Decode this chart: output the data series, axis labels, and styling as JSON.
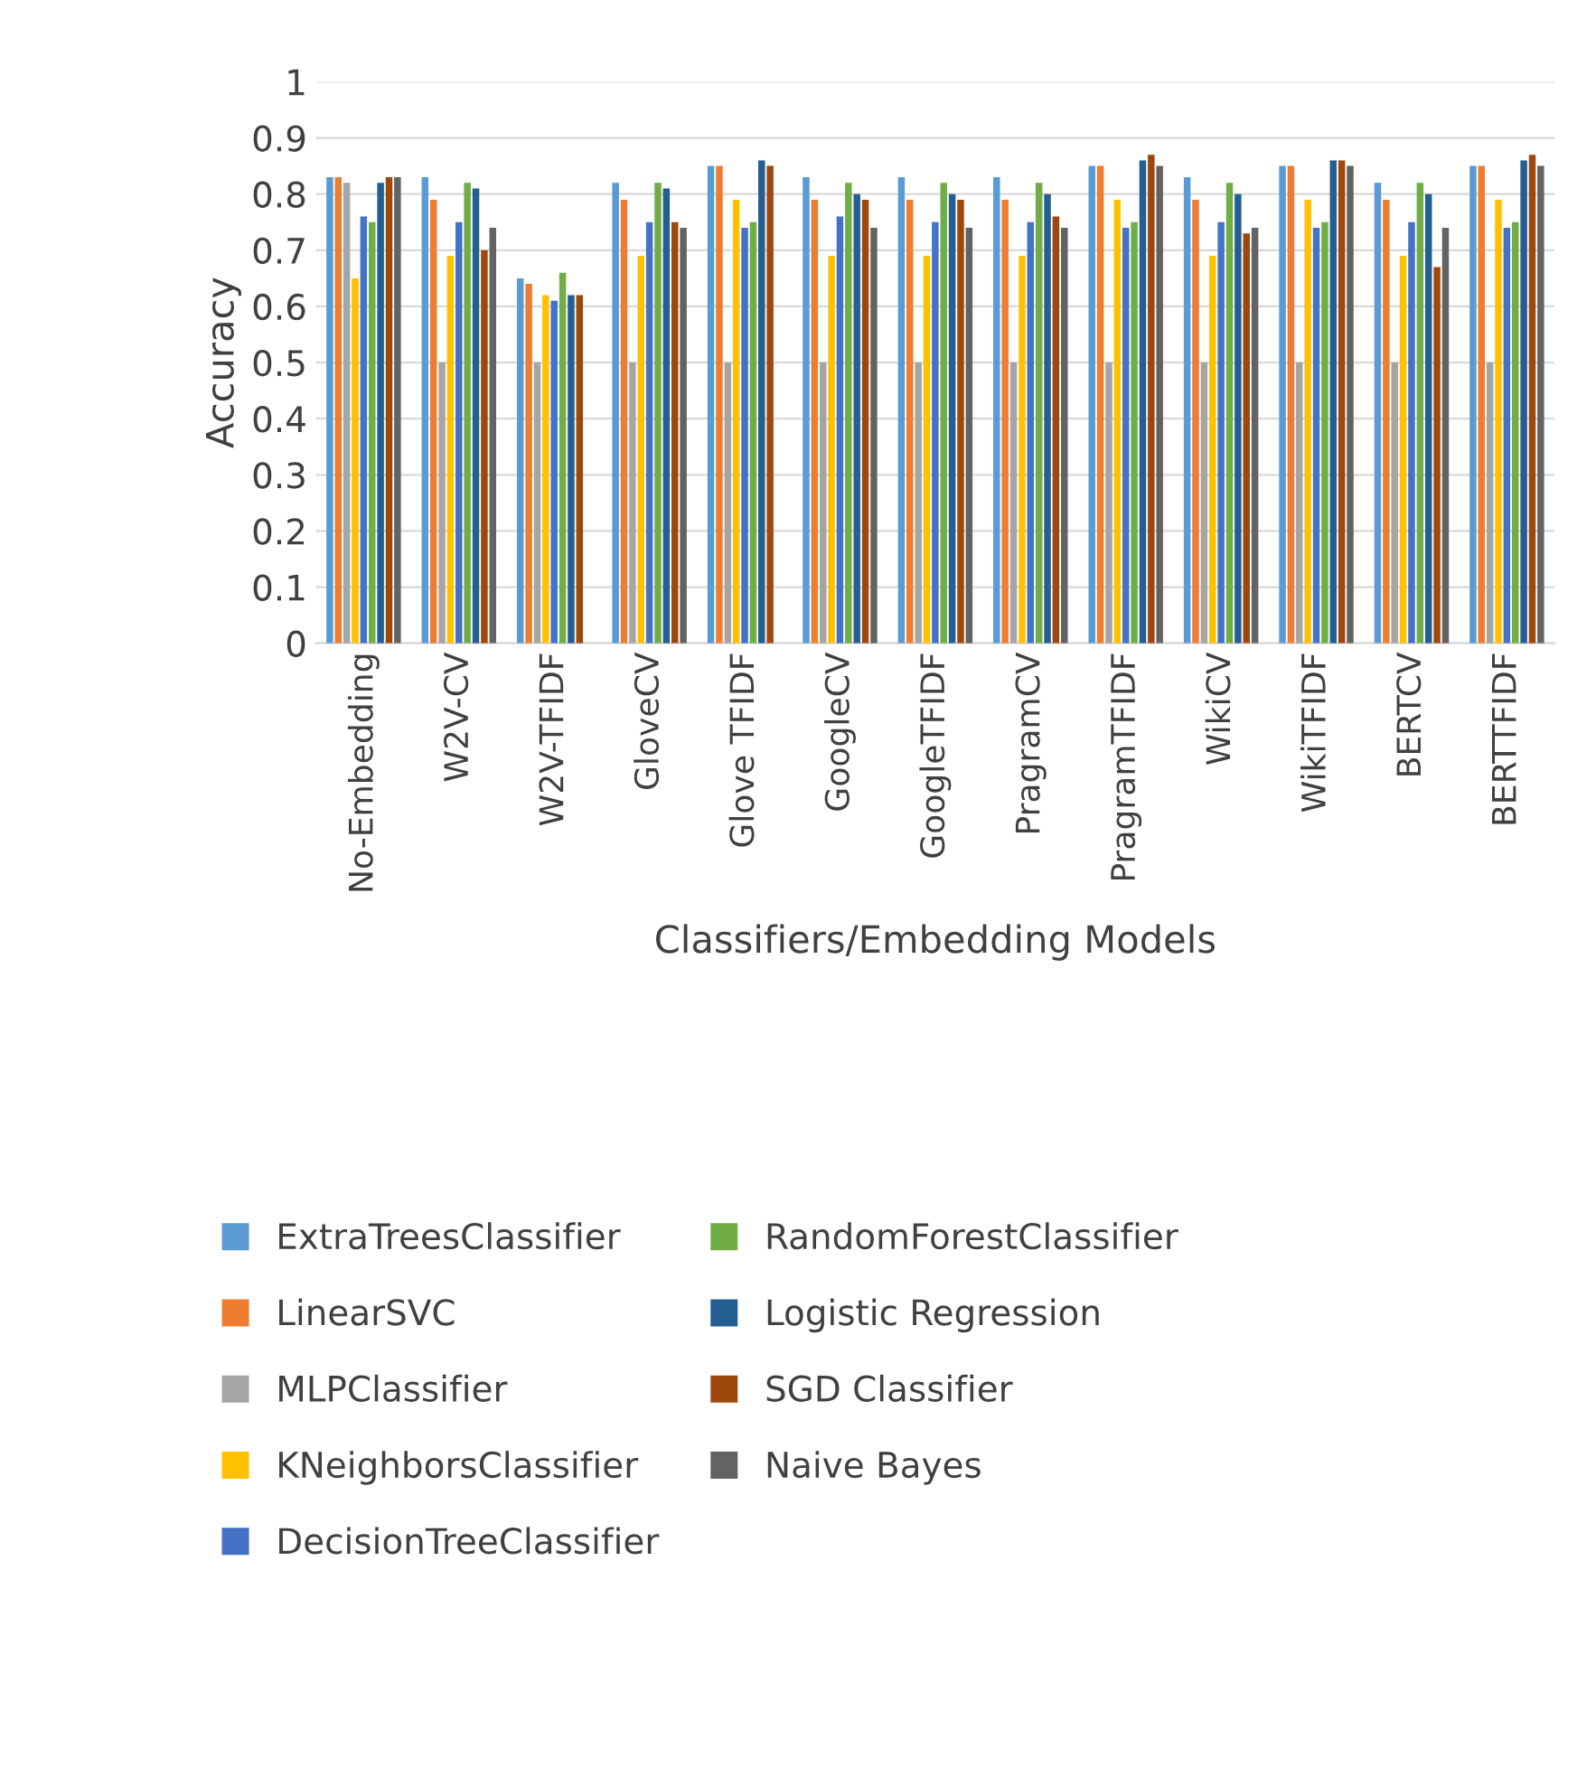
{
  "chart_data": {
    "type": "bar",
    "xlabel": "Classifiers/Embedding Models",
    "ylabel": "Accuracy",
    "categories": [
      "No-Embedding",
      "W2V-CV",
      "W2V-TFIDF",
      "GloveCV",
      "Glove TFIDF",
      "GoogleCV",
      "GoogleTFIDF",
      "PragramCV",
      "PragramTFIDF",
      "WikiCV",
      "WikiTFIDF",
      "BERTCV",
      "BERTTFIDF"
    ],
    "ylim": [
      0,
      1
    ],
    "yticks": [
      0,
      0.1,
      0.2,
      0.3,
      0.4,
      0.5,
      0.6,
      0.7,
      0.8,
      0.9,
      1
    ],
    "grid": "y",
    "legend": "bottom",
    "series": [
      {
        "name": "ExtraTreesClassifier",
        "color": "#5b9bd5",
        "values": [
          0.83,
          0.83,
          0.65,
          0.82,
          0.85,
          0.83,
          0.83,
          0.83,
          0.85,
          0.83,
          0.85,
          0.82,
          0.85
        ]
      },
      {
        "name": "LinearSVC",
        "color": "#ed7d31",
        "values": [
          0.83,
          0.79,
          0.64,
          0.79,
          0.85,
          0.79,
          0.79,
          0.79,
          0.85,
          0.79,
          0.85,
          0.79,
          0.85
        ]
      },
      {
        "name": "MLPClassifier",
        "color": "#a5a5a5",
        "values": [
          0.82,
          0.5,
          0.5,
          0.5,
          0.5,
          0.5,
          0.5,
          0.5,
          0.5,
          0.5,
          0.5,
          0.5,
          0.5
        ]
      },
      {
        "name": "KNeighborsClassifier",
        "color": "#ffc000",
        "values": [
          0.65,
          0.69,
          0.62,
          0.69,
          0.79,
          0.69,
          0.69,
          0.69,
          0.79,
          0.69,
          0.79,
          0.69,
          0.79
        ]
      },
      {
        "name": "DecisionTreeClassifier",
        "color": "#4472c4",
        "values": [
          0.76,
          0.75,
          0.61,
          0.75,
          0.74,
          0.76,
          0.75,
          0.75,
          0.74,
          0.75,
          0.74,
          0.75,
          0.74
        ]
      },
      {
        "name": "RandomForestClassifier",
        "color": "#70ad47",
        "values": [
          0.75,
          0.82,
          0.66,
          0.82,
          0.75,
          0.82,
          0.82,
          0.82,
          0.75,
          0.82,
          0.75,
          0.82,
          0.75
        ]
      },
      {
        "name": "Logistic Regression",
        "color": "#255e91",
        "values": [
          0.82,
          0.81,
          0.62,
          0.81,
          0.86,
          0.8,
          0.8,
          0.8,
          0.86,
          0.8,
          0.86,
          0.8,
          0.86
        ]
      },
      {
        "name": "SGD Classifier",
        "color": "#9e480e",
        "values": [
          0.83,
          0.7,
          0.62,
          0.75,
          0.85,
          0.79,
          0.79,
          0.76,
          0.87,
          0.73,
          0.86,
          0.67,
          0.87
        ]
      },
      {
        "name": "Naive Bayes",
        "color": "#636363",
        "values": [
          0.83,
          0.74,
          null,
          0.74,
          null,
          0.74,
          0.74,
          0.74,
          0.85,
          0.74,
          0.85,
          0.74,
          0.85
        ]
      }
    ]
  }
}
